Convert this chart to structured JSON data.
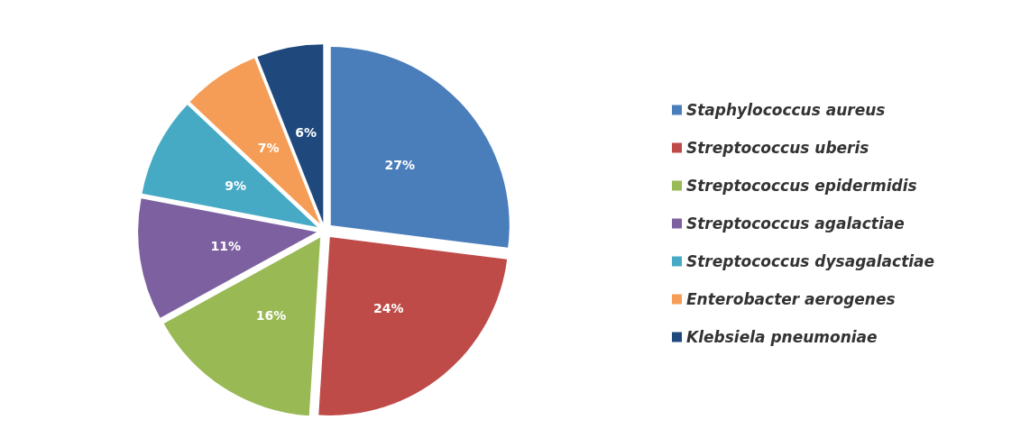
{
  "chart_data": {
    "type": "pie",
    "categories": [
      "Staphylococcus aureus",
      "Streptococcus uberis",
      "Streptococcus epidermidis",
      "Streptococcus agalactiae",
      "Streptococcus dysagalactiae",
      "Enterobacter aerogenes",
      "Klebsiela pneumoniae"
    ],
    "values": [
      27,
      24,
      16,
      11,
      9,
      7,
      6
    ],
    "colors": [
      "#4a7ebb",
      "#be4b48",
      "#98b954",
      "#7d60a0",
      "#46aac5",
      "#f59d56",
      "#1f497d"
    ],
    "value_labels": [
      "27%",
      "24%",
      "16%",
      "11%",
      "9%",
      "7%",
      "6%"
    ],
    "legend": "right"
  }
}
